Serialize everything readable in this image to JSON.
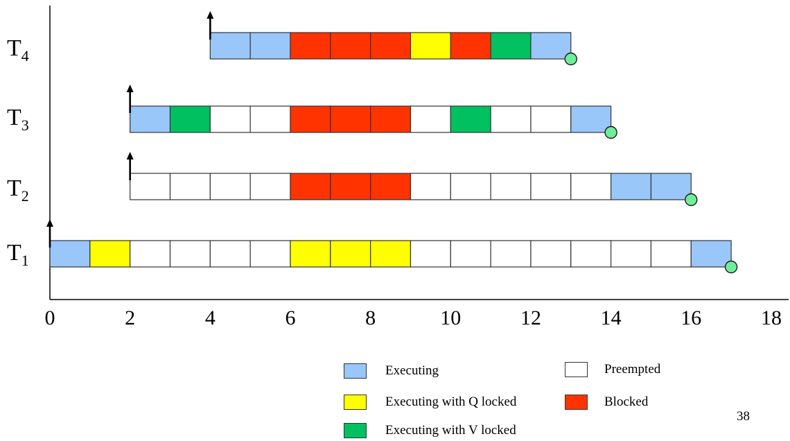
{
  "chart_data": {
    "type": "gantt",
    "x_range": [
      0,
      18
    ],
    "x_ticks": [
      0,
      2,
      4,
      6,
      8,
      10,
      12,
      14,
      16,
      18
    ],
    "state_colors": {
      "executing": "#99c7fa",
      "preempted": "#ffffff",
      "executing_q": "#ffff00",
      "blocked": "#ff3300",
      "executing_v": "#00c060"
    },
    "completion_color": "#6fee9a",
    "tasks": [
      {
        "name": "T",
        "sub": "4",
        "release": 4,
        "finish": 13,
        "slots": [
          "executing",
          "executing",
          "blocked",
          "blocked",
          "blocked",
          "executing_q",
          "blocked",
          "executing_v",
          "executing"
        ]
      },
      {
        "name": "T",
        "sub": "3",
        "release": 2,
        "finish": 14,
        "slots": [
          "executing",
          "executing_v",
          "preempted",
          "preempted",
          "blocked",
          "blocked",
          "blocked",
          "preempted",
          "executing_v",
          "preempted",
          "preempted",
          "executing"
        ]
      },
      {
        "name": "T",
        "sub": "2",
        "release": 2,
        "finish": 16,
        "slots": [
          "preempted",
          "preempted",
          "preempted",
          "preempted",
          "blocked",
          "blocked",
          "blocked",
          "preempted",
          "preempted",
          "preempted",
          "preempted",
          "preempted",
          "executing",
          "executing"
        ]
      },
      {
        "name": "T",
        "sub": "1",
        "release": 0,
        "finish": 17,
        "slots": [
          "executing",
          "executing_q",
          "preempted",
          "preempted",
          "preempted",
          "preempted",
          "executing_q",
          "executing_q",
          "executing_q",
          "preempted",
          "preempted",
          "preempted",
          "preempted",
          "preempted",
          "preempted",
          "preempted",
          "executing"
        ]
      }
    ]
  },
  "legend": [
    {
      "state": "executing",
      "label": "Executing"
    },
    {
      "state": "preempted",
      "label": "Preempted"
    },
    {
      "state": "executing_q",
      "label": "Executing with Q locked"
    },
    {
      "state": "blocked",
      "label": "Blocked"
    },
    {
      "state": "executing_v",
      "label": "Executing with V locked"
    }
  ],
  "page_number": "38"
}
